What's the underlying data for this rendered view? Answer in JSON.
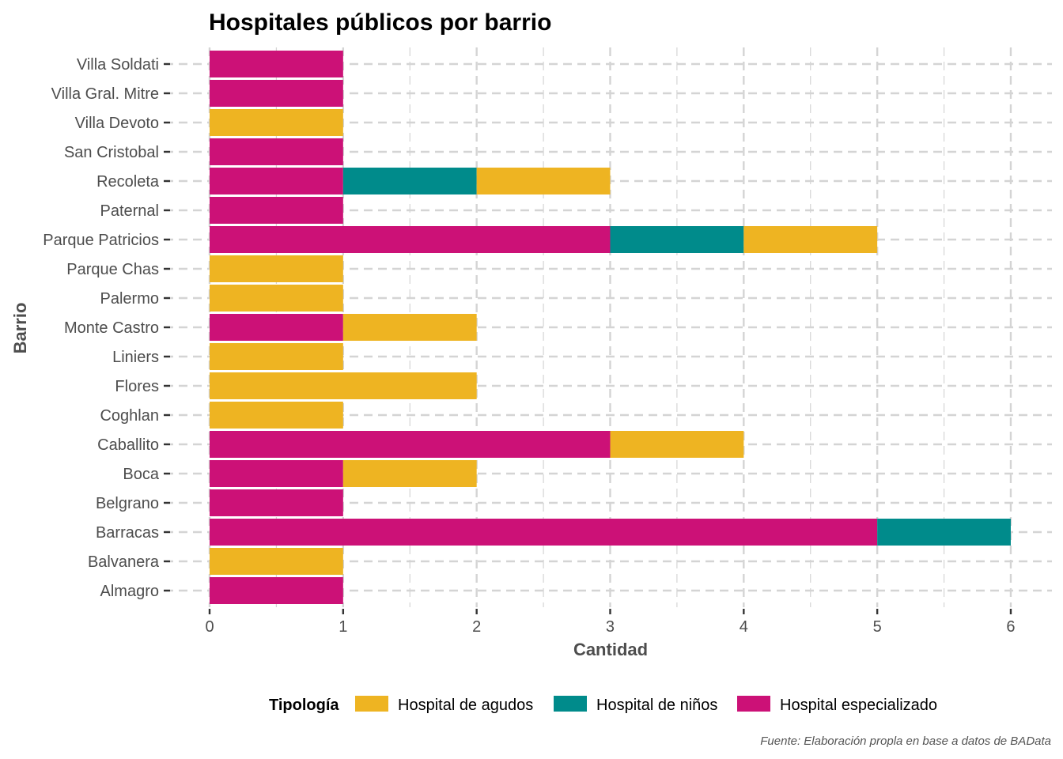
{
  "chart_data": {
    "type": "bar",
    "orientation": "horizontal",
    "stacked": true,
    "title": "Hospitales públicos por barrio",
    "xlabel": "Cantidad",
    "ylabel": "Barrio",
    "xlim": [
      0,
      6
    ],
    "x_ticks": [
      "0",
      "1",
      "2",
      "3",
      "4",
      "5",
      "6"
    ],
    "grid": true,
    "legend_title": "Tipología",
    "legend_position": "bottom",
    "caption": "Fuente: Elaboración propla en base a datos de BAData",
    "categories": [
      "Villa Soldati",
      "Villa Gral. Mitre",
      "Villa Devoto",
      "San Cristobal",
      "Recoleta",
      "Paternal",
      "Parque Patricios",
      "Parque Chas",
      "Palermo",
      "Monte Castro",
      "Liniers",
      "Flores",
      "Coghlan",
      "Caballito",
      "Boca",
      "Belgrano",
      "Barracas",
      "Balvanera",
      "Almagro"
    ],
    "series": [
      {
        "name": "Hospital especializado",
        "color": "#CC1177",
        "values": [
          1,
          1,
          0,
          1,
          1,
          1,
          3,
          0,
          0,
          1,
          0,
          0,
          0,
          3,
          1,
          1,
          5,
          0,
          1
        ]
      },
      {
        "name": "Hospital de niños",
        "color": "#008B8B",
        "values": [
          0,
          0,
          0,
          0,
          1,
          0,
          1,
          0,
          0,
          0,
          0,
          0,
          0,
          0,
          0,
          0,
          1,
          0,
          0
        ]
      },
      {
        "name": "Hospital de agudos",
        "color": "#EEB422",
        "values": [
          0,
          0,
          1,
          0,
          1,
          0,
          1,
          1,
          1,
          1,
          1,
          2,
          1,
          1,
          1,
          0,
          0,
          1,
          0
        ]
      }
    ],
    "legend_order": [
      "Hospital de agudos",
      "Hospital de niños",
      "Hospital especializado"
    ]
  }
}
